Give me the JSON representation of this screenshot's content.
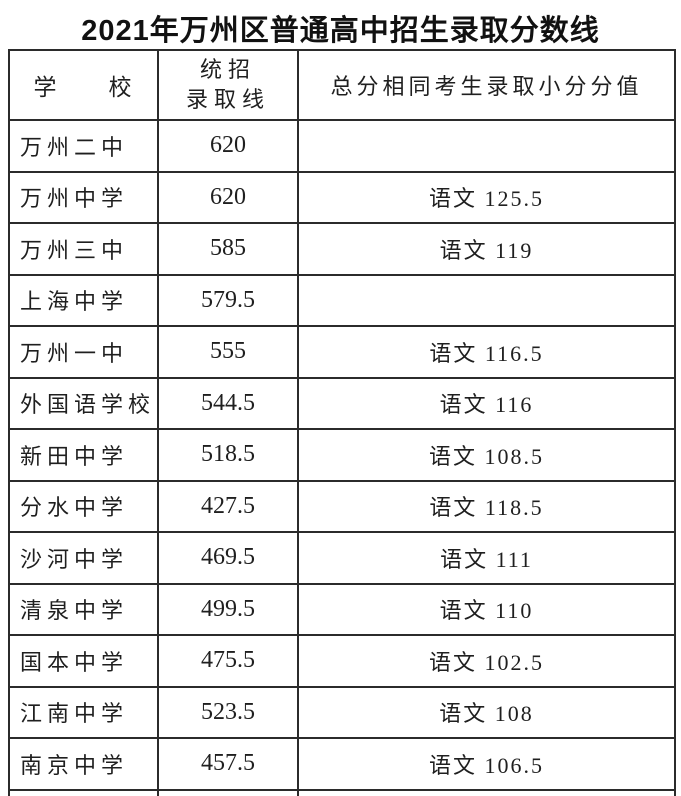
{
  "title": "2021年万州区普通高中招生录取分数线",
  "table": {
    "headers": {
      "school": "学　　校",
      "score_line1": "统招",
      "score_line2": "录取线",
      "note": "总分相同考生录取小分分值"
    },
    "rows": [
      {
        "school": "万州二中",
        "score": "620",
        "note": ""
      },
      {
        "school": "万州中学",
        "score": "620",
        "note": "语文 125.5"
      },
      {
        "school": "万州三中",
        "score": "585",
        "note": "语文 119"
      },
      {
        "school": "上海中学",
        "score": "579.5",
        "note": ""
      },
      {
        "school": "万州一中",
        "score": "555",
        "note": "语文 116.5"
      },
      {
        "school": "外国语学校",
        "score": "544.5",
        "note": "语文 116"
      },
      {
        "school": "新田中学",
        "score": "518.5",
        "note": "语文 108.5"
      },
      {
        "school": "分水中学",
        "score": "427.5",
        "note": "语文 118.5"
      },
      {
        "school": "沙河中学",
        "score": "469.5",
        "note": "语文 111"
      },
      {
        "school": "清泉中学",
        "score": "499.5",
        "note": "语文 110"
      },
      {
        "school": "国本中学",
        "score": "475.5",
        "note": "语文 102.5"
      },
      {
        "school": "江南中学",
        "score": "523.5",
        "note": "语文 108"
      },
      {
        "school": "南京中学",
        "score": "457.5",
        "note": "语文 106.5"
      }
    ]
  },
  "colors": {
    "background": "#ffffff",
    "text": "#1f1f1f",
    "title_text": "#111111",
    "border": "#2b2b2b"
  }
}
